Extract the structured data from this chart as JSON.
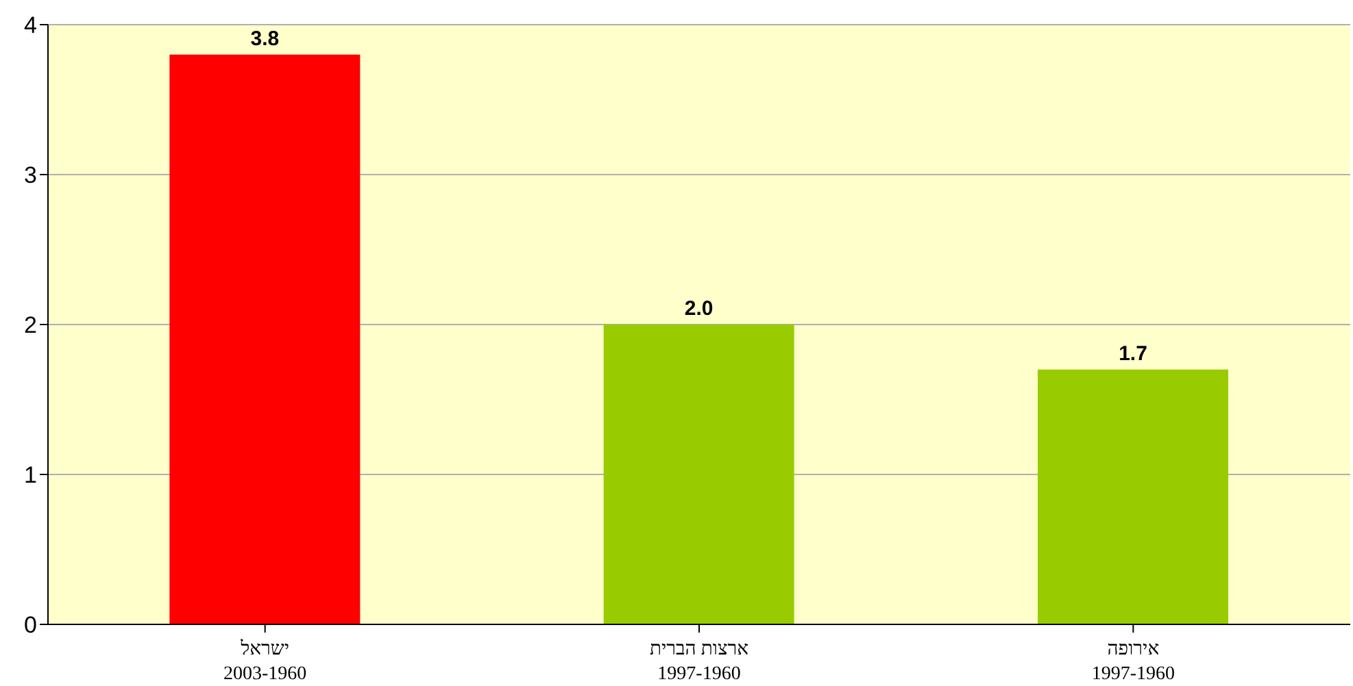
{
  "chart_data": {
    "type": "bar",
    "categories": [
      "ישראל\n2003-1960",
      "ארצות הברית\n1997-1960",
      "אירופה\n1997-1960"
    ],
    "values": [
      3.8,
      2.0,
      1.7
    ],
    "value_labels": [
      "3.8",
      "2.0",
      "1.7"
    ],
    "colors": [
      "#ff0000",
      "#99cc00",
      "#99cc00"
    ],
    "ylim": [
      0,
      4
    ],
    "yticks": [
      0,
      1,
      2,
      3,
      4
    ],
    "grid": "y"
  }
}
